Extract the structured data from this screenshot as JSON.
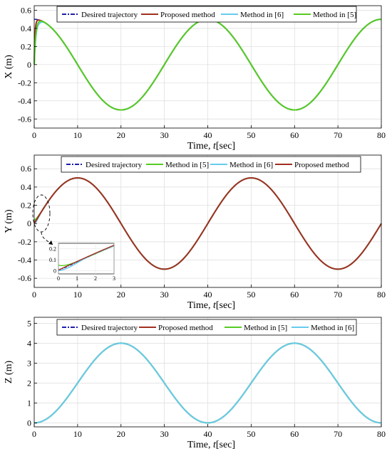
{
  "chart_data": [
    {
      "type": "line",
      "ylabel": "X (m)",
      "xlabel": "Time, ",
      "xlabel_italic": "t",
      "xlabel_unit": "[sec]",
      "xlim": [
        0,
        80
      ],
      "ylim": [
        -0.7,
        0.65
      ],
      "xticks": [
        "0",
        "10",
        "20",
        "30",
        "40",
        "50",
        "60",
        "70",
        "80"
      ],
      "yticks": [
        "-0.6",
        "-0.4",
        "-0.2",
        "0",
        "0.2",
        "0.4",
        "0.6"
      ],
      "grid": true,
      "legend_position": "top",
      "legend": [
        "Desired trajectory",
        "Proposed method",
        "Method in [6]",
        "Method in [5]"
      ],
      "series": [
        {
          "name": "Desired trajectory",
          "color": "#1f1fa8",
          "dash": "dashdot",
          "function": "0.5*cos(2*pi*t/40)"
        },
        {
          "name": "Proposed method",
          "color": "#a0301f",
          "dash": "solid",
          "function": "0.5*cos(2*pi*t/40)",
          "initial": 0.0
        },
        {
          "name": "Method in [6]",
          "color": "#66ccee",
          "dash": "solid",
          "function": "0.5*cos(2*pi*t/40)",
          "initial": 0.0
        },
        {
          "name": "Method in [5]",
          "color": "#55cc22",
          "dash": "solid",
          "function": "0.5*cos(2*pi*t/40)",
          "initial": 0.0
        }
      ]
    },
    {
      "type": "line",
      "ylabel": "Y (m)",
      "xlabel": "Time, ",
      "xlabel_italic": "t",
      "xlabel_unit": "[sec]",
      "xlim": [
        0,
        80
      ],
      "ylim": [
        -0.7,
        0.75
      ],
      "xticks": [
        "0",
        "10",
        "20",
        "30",
        "40",
        "50",
        "60",
        "70",
        "80"
      ],
      "yticks": [
        "-0.6",
        "-0.4",
        "-0.2",
        "0",
        "0.2",
        "0.4",
        "0.6"
      ],
      "grid": true,
      "legend_position": "top",
      "legend": [
        "Desired trajectory",
        "Method in [5]",
        "Method in [6]",
        "Proposed method"
      ],
      "series": [
        {
          "name": "Desired trajectory",
          "color": "#1f1fa8",
          "dash": "dashdot",
          "function": "0.5*sin(2*pi*t/40)"
        },
        {
          "name": "Method in [5]",
          "color": "#55cc22",
          "dash": "solid",
          "function": "0.5*sin(2*pi*t/40)"
        },
        {
          "name": "Method in [6]",
          "color": "#66ccee",
          "dash": "solid",
          "function": "0.5*sin(2*pi*t/40)"
        },
        {
          "name": "Proposed method",
          "color": "#a0301f",
          "dash": "solid",
          "function": "0.5*sin(2*pi*t/40)"
        }
      ],
      "inset": {
        "xlim": [
          0,
          3
        ],
        "ylim": [
          -0.03,
          0.25
        ],
        "xticks": [
          "0",
          "1",
          "2",
          "3"
        ],
        "yticks": [
          "0",
          "0.1",
          "0.2"
        ]
      }
    },
    {
      "type": "line",
      "ylabel": "Z (m)",
      "xlabel": "Time, ",
      "xlabel_italic": "t",
      "xlabel_unit": "[sec]",
      "xlim": [
        0,
        80
      ],
      "ylim": [
        -0.2,
        5.3
      ],
      "xticks": [
        "0",
        "10",
        "20",
        "30",
        "40",
        "50",
        "60",
        "70",
        "80"
      ],
      "yticks": [
        "0",
        "1",
        "2",
        "3",
        "4",
        "5"
      ],
      "grid": true,
      "legend_position": "top",
      "legend": [
        "Desired trajectory",
        "Proposed method",
        "Method in [5]",
        "Method in [6]"
      ],
      "series": [
        {
          "name": "Desired trajectory",
          "color": "#1f1fa8",
          "dash": "dashdot",
          "function": "2 - 2*cos(2*pi*t/40)"
        },
        {
          "name": "Proposed method",
          "color": "#a0301f",
          "dash": "solid",
          "function": "2 - 2*cos(2*pi*t/40)"
        },
        {
          "name": "Method in [5]",
          "color": "#55cc22",
          "dash": "solid",
          "function": "2 - 2*cos(2*pi*t/40)"
        },
        {
          "name": "Method in [6]",
          "color": "#66ccee",
          "dash": "solid",
          "function": "2 - 2*cos(2*pi*t/40)"
        }
      ]
    }
  ]
}
